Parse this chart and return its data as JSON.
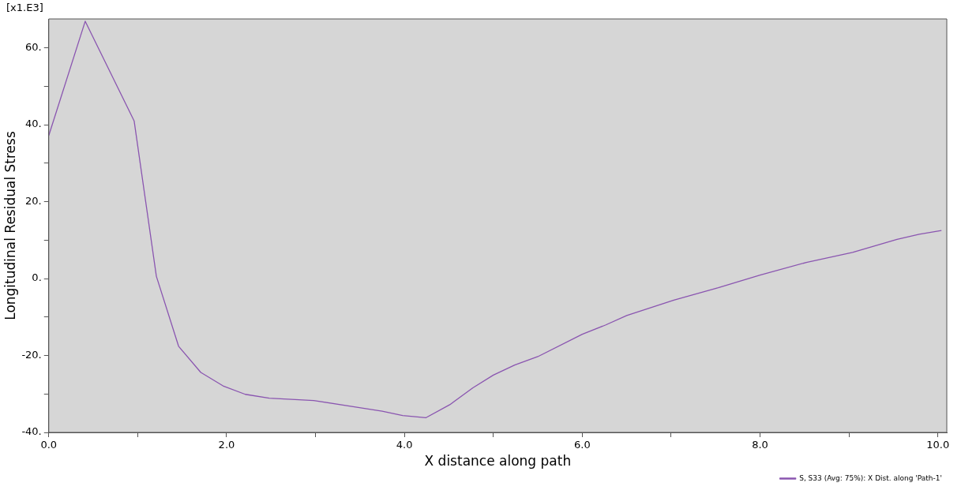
{
  "chart_data": {
    "type": "line",
    "xlabel": "X distance along path",
    "ylabel": "Longitudinal Residual Stress",
    "annotations": [
      "[x1.E3]"
    ],
    "x": [
      0,
      0.41,
      0.96,
      1.21,
      1.46,
      1.71,
      1.96,
      2.21,
      2.48,
      2.98,
      3.48,
      3.75,
      3.98,
      4.24,
      4.51,
      4.77,
      5.0,
      5.24,
      5.5,
      6.0,
      6.26,
      6.5,
      7.03,
      7.53,
      8.0,
      8.52,
      9.04,
      9.54,
      9.79,
      10.04
    ],
    "series": [
      {
        "name": "S, S33 (Avg: 75%): X Dist. along 'Path-1'",
        "color": "#8a55b0",
        "values": [
          37.2,
          66.9,
          41.0,
          0.6,
          -17.6,
          -24.4,
          -27.9,
          -30.1,
          -31.1,
          -31.7,
          -33.5,
          -34.5,
          -35.6,
          -36.2,
          -32.8,
          -28.4,
          -25.1,
          -22.5,
          -20.3,
          -14.5,
          -12.1,
          -9.6,
          -5.6,
          -2.4,
          0.9,
          4.2,
          6.8,
          10.2,
          11.5,
          12.5
        ]
      }
    ],
    "xlim": [
      0,
      10.1
    ],
    "ylim": [
      -40,
      67.5
    ],
    "xticks": [
      {
        "value": 0,
        "label": "0.0"
      },
      {
        "value": 1,
        "label": null
      },
      {
        "value": 2,
        "label": "2.0"
      },
      {
        "value": 3,
        "label": null
      },
      {
        "value": 4,
        "label": "4.0"
      },
      {
        "value": 5,
        "label": null
      },
      {
        "value": 6,
        "label": "6.0"
      },
      {
        "value": 7,
        "label": null
      },
      {
        "value": 8,
        "label": "8.0"
      },
      {
        "value": 9,
        "label": null
      },
      {
        "value": 10,
        "label": "10.0"
      }
    ],
    "yticks": [
      {
        "value": -40,
        "label": "-40."
      },
      {
        "value": -30,
        "label": null
      },
      {
        "value": -20,
        "label": "-20."
      },
      {
        "value": -10,
        "label": null
      },
      {
        "value": 0,
        "label": "0."
      },
      {
        "value": 10,
        "label": null
      },
      {
        "value": 20,
        "label": "20."
      },
      {
        "value": 30,
        "label": null
      },
      {
        "value": 40,
        "label": "40."
      },
      {
        "value": 50,
        "label": null
      },
      {
        "value": 60,
        "label": "60."
      }
    ],
    "grid": false,
    "legend": "bottom right",
    "marker": "none",
    "line_style": "solid"
  }
}
